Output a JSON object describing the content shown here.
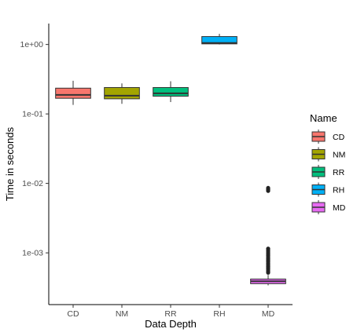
{
  "chart_data": {
    "type": "boxplot",
    "xlabel": "Data Depth",
    "ylabel": "Time in seconds",
    "y_scale": "log10",
    "ylim": [
      0.00018,
      2.0
    ],
    "y_ticks": [
      {
        "value": 1,
        "label": "1e+00"
      },
      {
        "value": 0.1,
        "label": "1e-01"
      },
      {
        "value": 0.01,
        "label": "1e-02"
      },
      {
        "value": 0.001,
        "label": "1e-03"
      }
    ],
    "grid": false,
    "legend": {
      "title": "Name",
      "position": "right"
    },
    "categories": [
      "CD",
      "NM",
      "RR",
      "RH",
      "MD"
    ],
    "boxes": [
      {
        "name": "CD",
        "color": "#F8766D",
        "min": 0.135,
        "q1": 0.168,
        "median": 0.188,
        "q3": 0.235,
        "max": 0.3,
        "outliers": []
      },
      {
        "name": "NM",
        "color": "#A3A500",
        "min": 0.14,
        "q1": 0.165,
        "median": 0.183,
        "q3": 0.24,
        "max": 0.275,
        "outliers": []
      },
      {
        "name": "RR",
        "color": "#00BF7D",
        "min": 0.148,
        "q1": 0.18,
        "median": 0.198,
        "q3": 0.24,
        "max": 0.295,
        "outliers": []
      },
      {
        "name": "RH",
        "color": "#00B0F6",
        "min": 1.0,
        "q1": 1.02,
        "median": 1.05,
        "q3": 1.3,
        "max": 1.42,
        "outliers": []
      },
      {
        "name": "MD",
        "color": "#E76BF3",
        "min": 0.00034,
        "q1": 0.00036,
        "median": 0.00039,
        "q3": 0.00042,
        "max": 0.00048,
        "outliers": [
          0.00052,
          0.00055,
          0.00058,
          0.00061,
          0.00064,
          0.00067,
          0.0007,
          0.00074,
          0.00078,
          0.00082,
          0.00087,
          0.00092,
          0.00097,
          0.00103,
          0.00109,
          0.00115,
          0.0078,
          0.0081,
          0.0084,
          0.0086
        ]
      }
    ]
  }
}
